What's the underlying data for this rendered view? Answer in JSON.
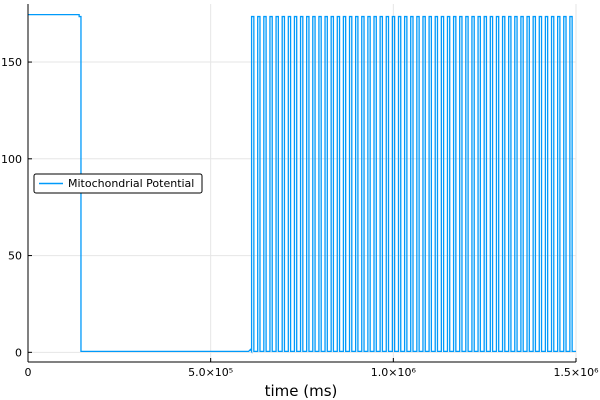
{
  "chart_data": {
    "type": "line",
    "title": "",
    "xlabel": "time (ms)",
    "ylabel": "",
    "xlim": [
      0,
      1500000
    ],
    "ylim": [
      -5,
      180
    ],
    "grid": true,
    "legend_position": "left",
    "x_ticks": [
      {
        "value": 0,
        "label": "0"
      },
      {
        "value": 500000,
        "label": "5.0×10⁵"
      },
      {
        "value": 1000000,
        "label": "1.0×10⁶"
      },
      {
        "value": 1500000,
        "label": "1.5×10⁶"
      }
    ],
    "y_ticks": [
      {
        "value": 0,
        "label": "0"
      },
      {
        "value": 50,
        "label": "50"
      },
      {
        "value": 100,
        "label": "100"
      },
      {
        "value": 150,
        "label": "150"
      }
    ],
    "series": [
      {
        "name": "Mitochondrial Potential",
        "color": "#009AFA",
        "initial": {
          "value": 174.5,
          "start": 0,
          "end": 140000,
          "step_end": 145000,
          "step_value": 173.5
        },
        "drop_at": 145000,
        "low_value": 0.5,
        "onset_level": 1.5,
        "oscillation": {
          "start": 612000,
          "end": 1500000,
          "count": 53,
          "high": 173.5,
          "low": 0.5
        }
      }
    ]
  }
}
